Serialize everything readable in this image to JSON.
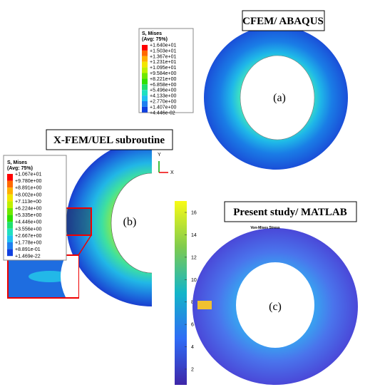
{
  "panels": [
    {
      "title": "CFEM/ ABAQUS",
      "label": "(a)",
      "legend": {
        "title": "S, Mises",
        "subtitle": "(Avg: 75%)",
        "levels": [
          "+1.640e+01",
          "+1.503e+01",
          "+1.367e+01",
          "+1.231e+01",
          "+1.095e+01",
          "+9.584e+00",
          "+8.221e+00",
          "+6.858e+00",
          "+5.496e+00",
          "+4.133e+00",
          "+2.770e+00",
          "+1.407e+00",
          "+4.446e-02"
        ]
      }
    },
    {
      "title": "X-FEM/UEL subroutine",
      "label": "(b)",
      "axes": [
        "Y",
        "X"
      ],
      "legend": {
        "title": "S, Mises",
        "subtitle": "(Avg: 75%)",
        "levels": [
          "+1.067e+01",
          "+9.780e+00",
          "+8.891e+00",
          "+8.002e+00",
          "+7.113e+00",
          "+6.224e+00",
          "+5.335e+00",
          "+4.446e+00",
          "+3.556e+00",
          "+2.667e+00",
          "+1.778e+00",
          "+8.891e-01",
          "+1.469e-22"
        ]
      }
    },
    {
      "title": "Present study/ MATLAB",
      "label": "(c)",
      "plot_title": "Von-Mises Stress",
      "colorbar_ticks": [
        2,
        4,
        6,
        8,
        10,
        12,
        14,
        16
      ]
    }
  ]
}
